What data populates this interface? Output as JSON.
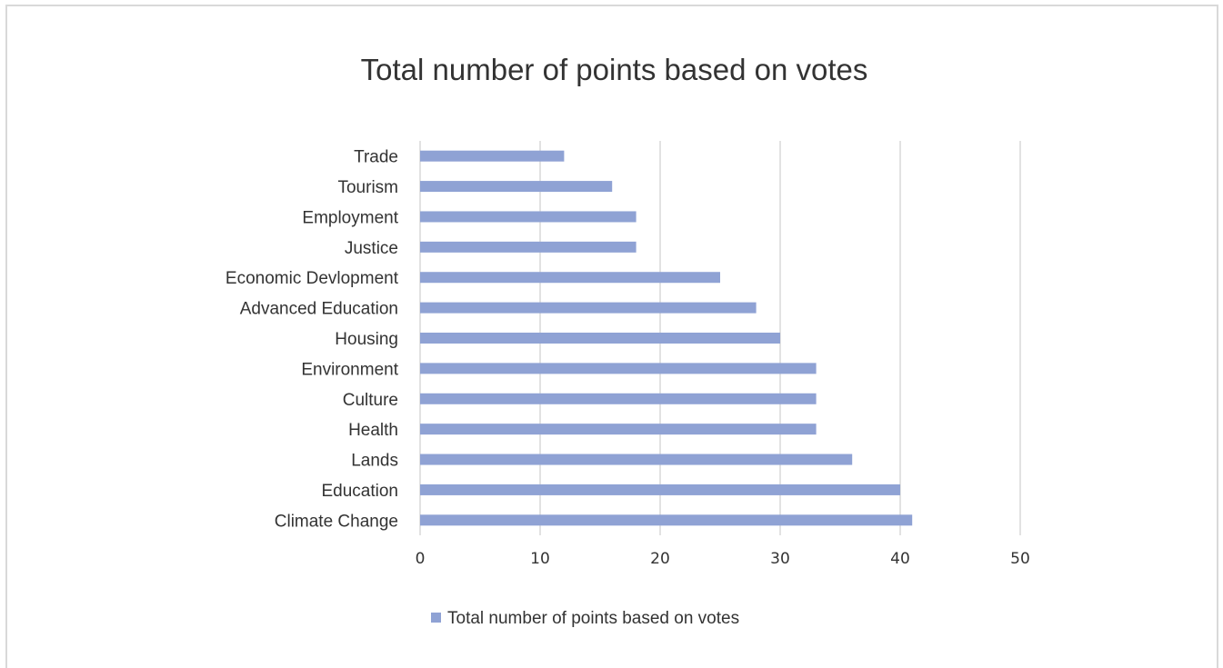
{
  "chart_data": {
    "type": "bar",
    "orientation": "horizontal",
    "title": "Total number of points based on votes",
    "categories": [
      "Trade",
      "Tourism",
      "Employment",
      "Justice",
      "Economic Devlopment",
      "Advanced Education",
      "Housing",
      "Environment",
      "Culture",
      "Health",
      "Lands",
      "Education",
      "Climate Change"
    ],
    "series": [
      {
        "name": "Total number of points based on votes",
        "values": [
          12,
          16,
          18,
          18,
          25,
          28,
          30,
          33,
          33,
          33,
          36,
          40,
          41
        ],
        "color": "#8fa2d4"
      }
    ],
    "xlim": [
      0,
      50
    ],
    "xticks": [
      "0",
      "10",
      "20",
      "30",
      "40",
      "50"
    ],
    "xlabel": "",
    "ylabel": "",
    "grid": "vertical",
    "legend_position": "bottom"
  }
}
